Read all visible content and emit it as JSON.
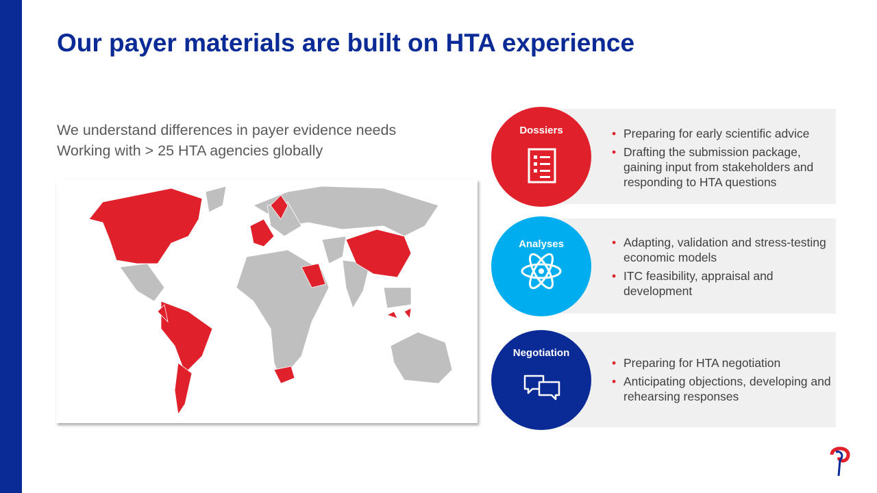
{
  "title": "Our payer materials are built on HTA experience",
  "intro": [
    "We understand differences in payer evidence needs",
    "Working with > 25 HTA agencies globally"
  ],
  "cards": [
    {
      "label": "Dossiers",
      "bullets": [
        "Preparing for early scientific advice",
        "Drafting the submission package, gaining input from stakeholders and responding to HTA questions"
      ]
    },
    {
      "label": "Analyses",
      "bullets": [
        "Adapting, validation and stress-testing economic models",
        "ITC feasibility, appraisal and development"
      ]
    },
    {
      "label": "Negotiation",
      "bullets": [
        "Preparing for HTA negotiation",
        "Anticipating objections, developing and rehearsing responses"
      ]
    }
  ]
}
